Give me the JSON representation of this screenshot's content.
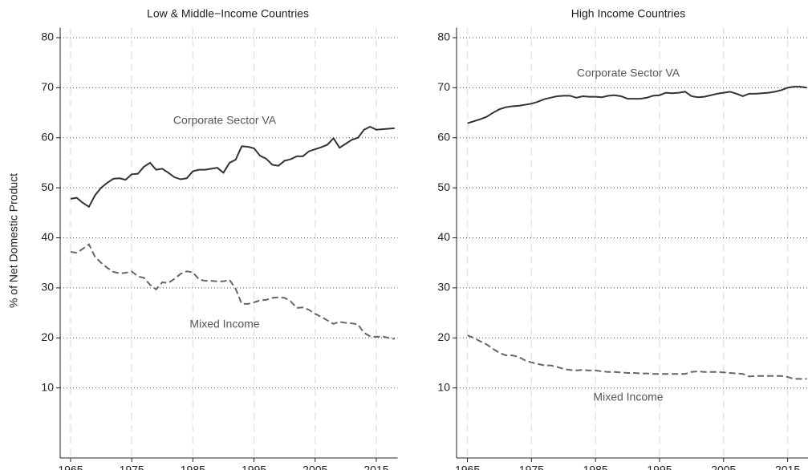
{
  "chart_data": [
    {
      "type": "line",
      "title": "Low & Middle−Income Countries",
      "ylabel": "% of Net Domestic Product",
      "x": [
        1965,
        1966,
        1967,
        1968,
        1969,
        1970,
        1971,
        1972,
        1973,
        1974,
        1975,
        1976,
        1977,
        1978,
        1979,
        1980,
        1981,
        1982,
        1983,
        1984,
        1985,
        1986,
        1987,
        1988,
        1989,
        1990,
        1991,
        1992,
        1993,
        1994,
        1995,
        1996,
        1997,
        1998,
        1999,
        2000,
        2001,
        2002,
        2003,
        2004,
        2005,
        2006,
        2007,
        2008,
        2009,
        2010,
        2011,
        2012,
        2013,
        2014,
        2015,
        2016,
        2017,
        2018
      ],
      "series": [
        {
          "name": "Corporate Sector VA",
          "color": "#333333",
          "style": "solid",
          "values": [
            47.8,
            48,
            47,
            46.2,
            48.5,
            50,
            51,
            51.8,
            51.9,
            51.6,
            52.7,
            52.8,
            54.2,
            55,
            53.6,
            53.8,
            53,
            52.1,
            51.7,
            51.9,
            53.3,
            53.6,
            53.6,
            53.8,
            54,
            53,
            55,
            55.6,
            58.3,
            58.2,
            57.9,
            56.4,
            55.8,
            54.6,
            54.4,
            55.4,
            55.7,
            56.3,
            56.3,
            57.3,
            57.7,
            58.1,
            58.6,
            59.9,
            58,
            58.8,
            59.6,
            60,
            61.6,
            62.2,
            61.6,
            61.7,
            61.8,
            61.9
          ]
        },
        {
          "name": "Mixed Income",
          "color": "#666666",
          "style": "dashed",
          "values": [
            37.2,
            37,
            37.8,
            38.7,
            36.2,
            35,
            34,
            33.2,
            32.9,
            33,
            33.3,
            32.3,
            32,
            30.6,
            29.7,
            31.1,
            31,
            31.8,
            32.8,
            33.3,
            33.1,
            31.7,
            31.4,
            31.4,
            31.3,
            31.3,
            31.6,
            29.8,
            26.8,
            26.8,
            27.1,
            27.5,
            27.6,
            28,
            28.1,
            28,
            27.3,
            26,
            26.1,
            25.6,
            24.8,
            24.2,
            23.5,
            22.8,
            23.2,
            23,
            22.9,
            22.7,
            21,
            20.3,
            20.2,
            20.3,
            20,
            19.8
          ]
        }
      ],
      "xlim": [
        1963.3,
        2018.5
      ],
      "xticks": [
        1965,
        1975,
        1985,
        1995,
        2005,
        2015
      ],
      "ylim": [
        -4,
        82
      ],
      "yticks": [
        10,
        20,
        30,
        40,
        50,
        60,
        70,
        80
      ],
      "grid": true
    },
    {
      "type": "line",
      "title": "High Income Countries",
      "x": [
        1965,
        1966,
        1967,
        1968,
        1969,
        1970,
        1971,
        1972,
        1973,
        1974,
        1975,
        1976,
        1977,
        1978,
        1979,
        1980,
        1981,
        1982,
        1983,
        1984,
        1985,
        1986,
        1987,
        1988,
        1989,
        1990,
        1991,
        1992,
        1993,
        1994,
        1995,
        1996,
        1997,
        1998,
        1999,
        2000,
        2001,
        2002,
        2003,
        2004,
        2005,
        2006,
        2007,
        2008,
        2009,
        2010,
        2011,
        2012,
        2013,
        2014,
        2015,
        2016,
        2017,
        2018
      ],
      "series": [
        {
          "name": "Corporate Sector VA",
          "color": "#333333",
          "style": "solid",
          "values": [
            62.9,
            63.3,
            63.7,
            64.2,
            65,
            65.7,
            66.1,
            66.3,
            66.4,
            66.6,
            66.8,
            67.2,
            67.7,
            68,
            68.3,
            68.4,
            68.4,
            68,
            68.3,
            68.2,
            68.2,
            68.1,
            68.4,
            68.5,
            68.3,
            67.8,
            67.8,
            67.8,
            68,
            68.4,
            68.5,
            69,
            68.9,
            69,
            69.2,
            68.3,
            68.1,
            68.2,
            68.5,
            68.8,
            69,
            69.2,
            68.8,
            68.3,
            68.8,
            68.8,
            68.9,
            69,
            69.2,
            69.5,
            70,
            70.2,
            70.2,
            70
          ]
        },
        {
          "name": "Mixed Income",
          "color": "#666666",
          "style": "dashed",
          "values": [
            20.5,
            20,
            19.3,
            18.7,
            17.8,
            17,
            16.5,
            16.5,
            16.2,
            15.5,
            15.1,
            14.8,
            14.5,
            14.5,
            14.2,
            13.8,
            13.6,
            13.5,
            13.6,
            13.5,
            13.5,
            13.3,
            13.2,
            13.2,
            13.1,
            13,
            13,
            12.9,
            12.9,
            12.8,
            12.8,
            12.8,
            12.8,
            12.8,
            12.8,
            13.2,
            13.3,
            13.2,
            13.2,
            13.2,
            13.1,
            13,
            12.9,
            12.8,
            12.3,
            12.4,
            12.4,
            12.4,
            12.4,
            12.4,
            12.2,
            11.8,
            11.8,
            11.8
          ]
        }
      ],
      "xlim": [
        1963.3,
        2018.5
      ],
      "xticks": [
        1965,
        1975,
        1985,
        1995,
        2005,
        2015
      ],
      "ylim": [
        -4,
        82
      ],
      "yticks": [
        10,
        20,
        30,
        40,
        50,
        60,
        70,
        80
      ],
      "grid": true
    }
  ]
}
